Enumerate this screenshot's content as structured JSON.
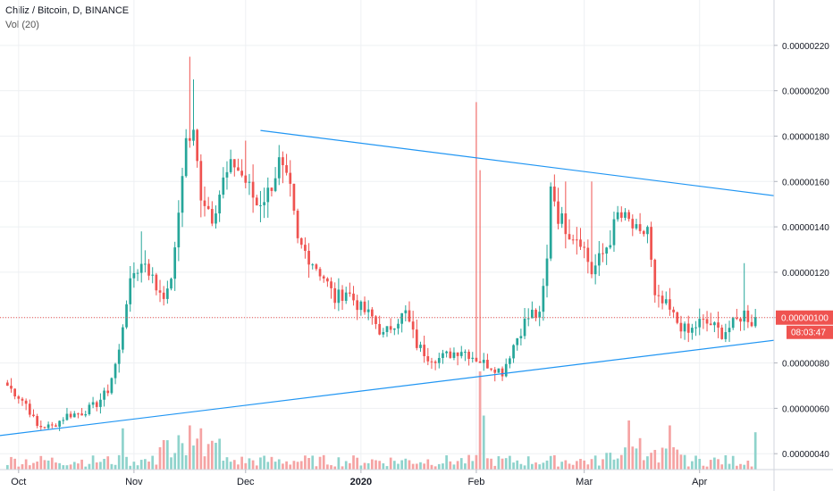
{
  "header": {
    "title": "Chiliz / Bitcoin, D, BINANCE",
    "volume_label": "Vol (20)"
  },
  "colors": {
    "up": "#26a69a",
    "down": "#ef5350",
    "up_vol": "#8fd3cc",
    "down_vol": "#f5a3a3",
    "trendline": "#2196f3",
    "price_line": "#ef5350",
    "grid": "#eef0f3"
  },
  "chart_data": {
    "type": "candlestick",
    "title": "Chiliz / Bitcoin, D, BINANCE",
    "y_tick_labels": [
      "0.00000040",
      "0.00000060",
      "0.00000080",
      "0.00000100",
      "0.00000120",
      "0.00000140",
      "0.00000160",
      "0.00000180",
      "0.00000200",
      "0.00000220"
    ],
    "x_tick_labels": [
      "Oct",
      "Nov",
      "Dec",
      "2020",
      "Feb",
      "Mar",
      "Apr"
    ],
    "x_tick_days": [
      3,
      34,
      64,
      95,
      126,
      155,
      186
    ],
    "ylim": [
      3.3e-07,
      2.4e-06
    ],
    "current_price": "0.00000100",
    "countdown": "08:03:47",
    "trendlines": [
      {
        "from": [
          68,
          1.825e-06
        ],
        "to": [
          212,
          1.525e-06
        ]
      },
      {
        "from": [
          -12,
          4.6e-07
        ],
        "to": [
          211,
          9.1e-07
        ]
      }
    ],
    "keypoints": [
      [
        0,
        7e-07
      ],
      [
        5,
        6.2e-07
      ],
      [
        8,
        5.2e-07
      ],
      [
        12,
        5.2e-07
      ],
      [
        16,
        5.7e-07
      ],
      [
        20,
        5.8e-07
      ],
      [
        24,
        6.2e-07
      ],
      [
        27,
        6.8e-07
      ],
      [
        30,
        8.5e-07
      ],
      [
        31,
        9.7e-07
      ],
      [
        32,
        1.08e-06
      ],
      [
        34,
        1.2e-06
      ],
      [
        37,
        1.25e-06
      ],
      [
        40,
        1.13e-06
      ],
      [
        43,
        1.1e-06
      ],
      [
        45,
        1.28e-06
      ],
      [
        47,
        1.65e-06
      ],
      [
        48,
        1.78e-06
      ],
      [
        50,
        1.8e-06
      ],
      [
        52,
        1.55e-06
      ],
      [
        55,
        1.45e-06
      ],
      [
        58,
        1.6e-06
      ],
      [
        61,
        1.68e-06
      ],
      [
        64,
        1.6e-06
      ],
      [
        67,
        1.5e-06
      ],
      [
        70,
        1.55e-06
      ],
      [
        73,
        1.68e-06
      ],
      [
        76,
        1.55e-06
      ],
      [
        78,
        1.33e-06
      ],
      [
        81,
        1.27e-06
      ],
      [
        85,
        1.18e-06
      ],
      [
        88,
        1.08e-06
      ],
      [
        91,
        1.12e-06
      ],
      [
        95,
        1.04e-06
      ],
      [
        98,
        1e-06
      ],
      [
        101,
        9.2e-07
      ],
      [
        104,
        9.8e-07
      ],
      [
        107,
        1.02e-06
      ],
      [
        110,
        8.8e-07
      ],
      [
        113,
        8.3e-07
      ],
      [
        116,
        8.2e-07
      ],
      [
        119,
        8.4e-07
      ],
      [
        122,
        8.6e-07
      ],
      [
        125,
        8.3e-07
      ],
      [
        128,
        8e-07
      ],
      [
        131,
        7.8e-07
      ],
      [
        133,
        7.6e-07
      ],
      [
        136,
        8.8e-07
      ],
      [
        139,
        9.8e-07
      ],
      [
        141,
        1.02e-06
      ],
      [
        143,
        1e-06
      ],
      [
        145,
        1.25e-06
      ],
      [
        146,
        1.6e-06
      ],
      [
        148,
        1.45e-06
      ],
      [
        151,
        1.38e-06
      ],
      [
        154,
        1.35e-06
      ],
      [
        157,
        1.2e-06
      ],
      [
        160,
        1.28e-06
      ],
      [
        162,
        1.35e-06
      ],
      [
        164,
        1.45e-06
      ],
      [
        167,
        1.42e-06
      ],
      [
        170,
        1.35e-06
      ],
      [
        172,
        1.4e-06
      ],
      [
        174,
        1.08e-06
      ],
      [
        177,
        1.05e-06
      ],
      [
        180,
        9.8e-07
      ],
      [
        183,
        9.3e-07
      ],
      [
        186,
        9.8e-07
      ],
      [
        189,
        9.7e-07
      ],
      [
        192,
        9.3e-07
      ],
      [
        195,
        9.7e-07
      ],
      [
        198,
        1.02e-06
      ],
      [
        200,
        9.8e-07
      ],
      [
        201,
        1e-06
      ]
    ],
    "volume_peaks": [
      {
        "day": 127,
        "rel": 1.0
      },
      {
        "day": 127.5,
        "rel": 0.55
      },
      {
        "day": 49,
        "rel": 0.45
      },
      {
        "day": 31,
        "rel": 0.42
      },
      {
        "day": 46,
        "rel": 0.35
      },
      {
        "day": 52,
        "rel": 0.42
      },
      {
        "day": 167,
        "rel": 0.5
      },
      {
        "day": 178,
        "rel": 0.45
      },
      {
        "day": 201,
        "rel": 0.38
      },
      {
        "day": 170,
        "rel": 0.32
      }
    ]
  }
}
